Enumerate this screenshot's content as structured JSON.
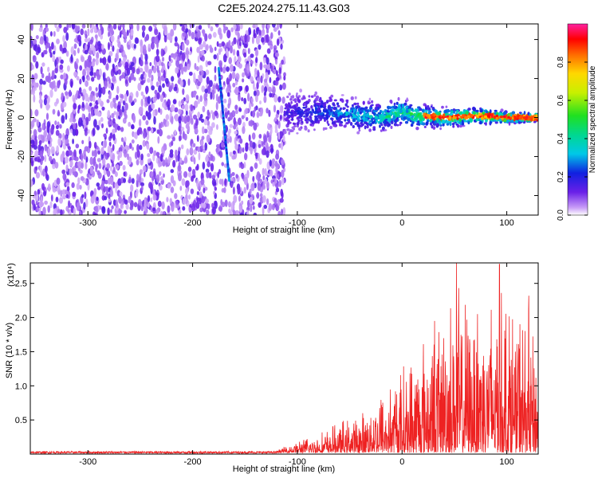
{
  "title": "C2E5.2024.275.11.43.G03",
  "chart_data": [
    {
      "type": "heatmap",
      "xlabel": "Height of straight line (km)",
      "ylabel": "Frequency (Hz)",
      "xlim": [
        -355,
        130
      ],
      "ylim": [
        -50,
        48
      ],
      "xticks": [
        -300,
        -200,
        -100,
        0,
        100
      ],
      "yticks": [
        -40,
        -20,
        0,
        20,
        40
      ],
      "colorbar": {
        "label": "Normalized spectral amplitude",
        "range": [
          0,
          1
        ],
        "ticks": [
          0.0,
          0.2,
          0.4,
          0.6,
          0.8
        ]
      },
      "noise_region_x": [
        -355,
        -112
      ],
      "signal_track": {
        "from_x": -112,
        "to_x": 130,
        "frequency": [
          [
            -112,
            2
          ],
          [
            -80,
            3
          ],
          [
            -60,
            2
          ],
          [
            -40,
            1
          ],
          [
            -20,
            0
          ],
          [
            0,
            3
          ],
          [
            10,
            1
          ],
          [
            40,
            0
          ],
          [
            70,
            1
          ],
          [
            100,
            0
          ],
          [
            130,
            0
          ]
        ]
      },
      "diagonal_streak": [
        [
          -175,
          25
        ],
        [
          -165,
          -32
        ]
      ]
    },
    {
      "type": "line",
      "xlabel": "Height of straight line (km)",
      "ylabel": "SNR (10 * v/v)",
      "y_multiplier": "(x10⁴)",
      "xlim": [
        -355,
        130
      ],
      "ylim": [
        0,
        2.8
      ],
      "xticks": [
        -300,
        -200,
        -100,
        0,
        100
      ],
      "yticks": [
        0.5,
        1.0,
        1.5,
        2.0,
        2.5
      ],
      "series": [
        {
          "color": "#ee2222",
          "envelope_x": [
            -355,
            -120,
            -100,
            -80,
            -60,
            -40,
            -20,
            0,
            20,
            40,
            55,
            60,
            80,
            100,
            120,
            130
          ],
          "envelope_y": [
            0.03,
            0.04,
            0.2,
            0.3,
            0.5,
            0.6,
            1.1,
            1.4,
            1.9,
            2.3,
            2.8,
            2.4,
            2.8,
            2.6,
            2.3,
            1.7
          ],
          "peaks": [
            {
              "x": 52,
              "y": 2.8
            },
            {
              "x": 93,
              "y": 2.78
            },
            {
              "x": 121,
              "y": 2.32
            },
            {
              "x": 72,
              "y": 2.05
            },
            {
              "x": 31,
              "y": 1.95
            }
          ]
        }
      ]
    }
  ]
}
